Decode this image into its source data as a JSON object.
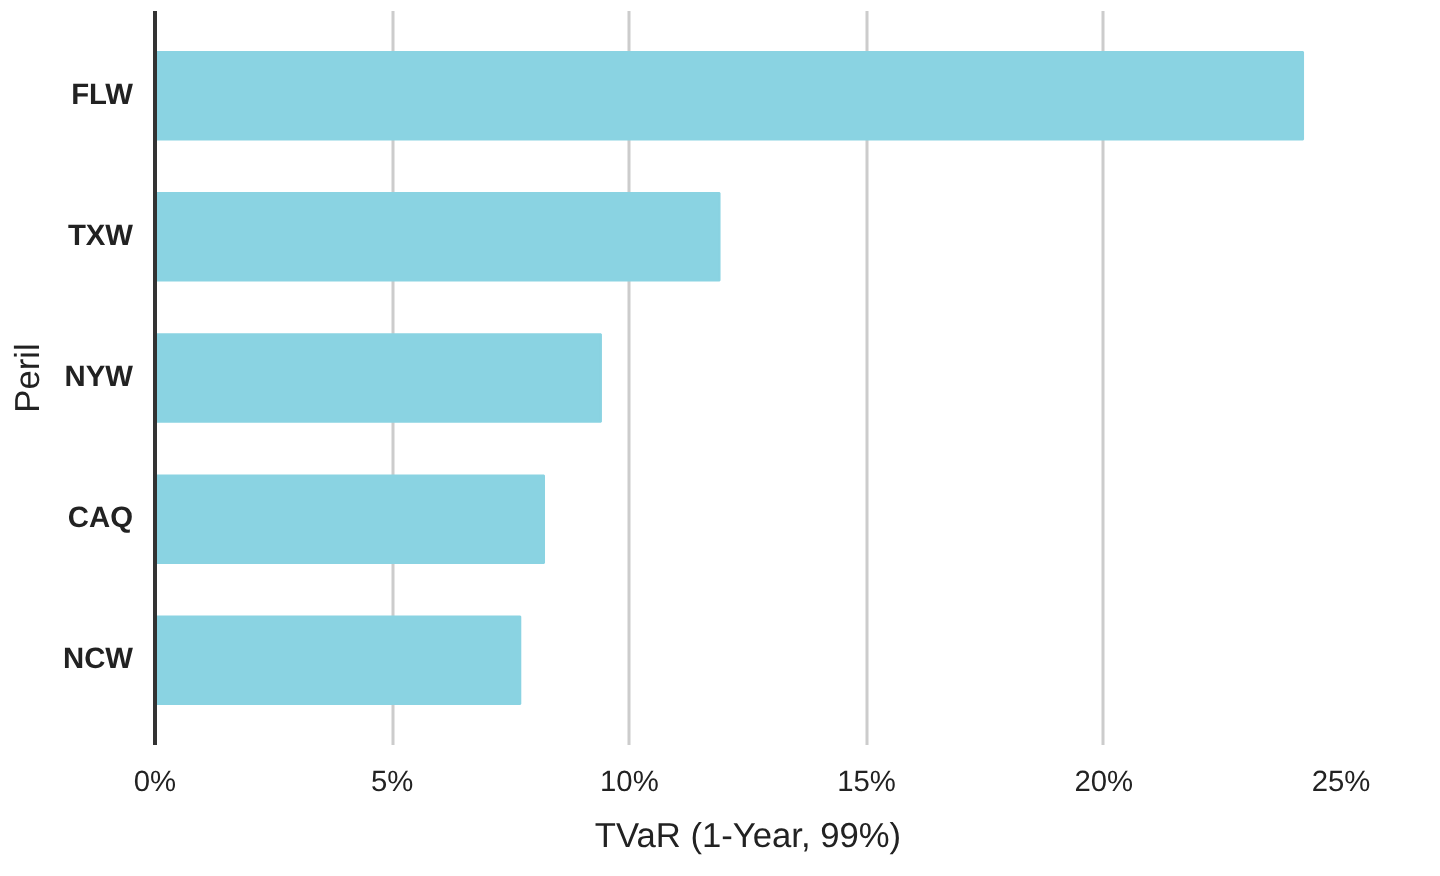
{
  "chart_data": {
    "type": "bar",
    "orientation": "horizontal",
    "xlabel": "TVaR (1-Year, 99%)",
    "ylabel": "Peril",
    "categories": [
      "FLW",
      "TXW",
      "NYW",
      "CAQ",
      "NCW"
    ],
    "values": [
      24.2,
      11.9,
      9.4,
      8.2,
      7.7
    ],
    "color": "#8ad3e2",
    "xlim": [
      0,
      25
    ],
    "xticks": [
      {
        "value": 0,
        "label": "0%"
      },
      {
        "value": 5,
        "label": "5%"
      },
      {
        "value": 10,
        "label": "10%"
      },
      {
        "value": 15,
        "label": "15%"
      },
      {
        "value": 20,
        "label": "20%"
      },
      {
        "value": 25,
        "label": "25%"
      }
    ],
    "grid": "x"
  }
}
